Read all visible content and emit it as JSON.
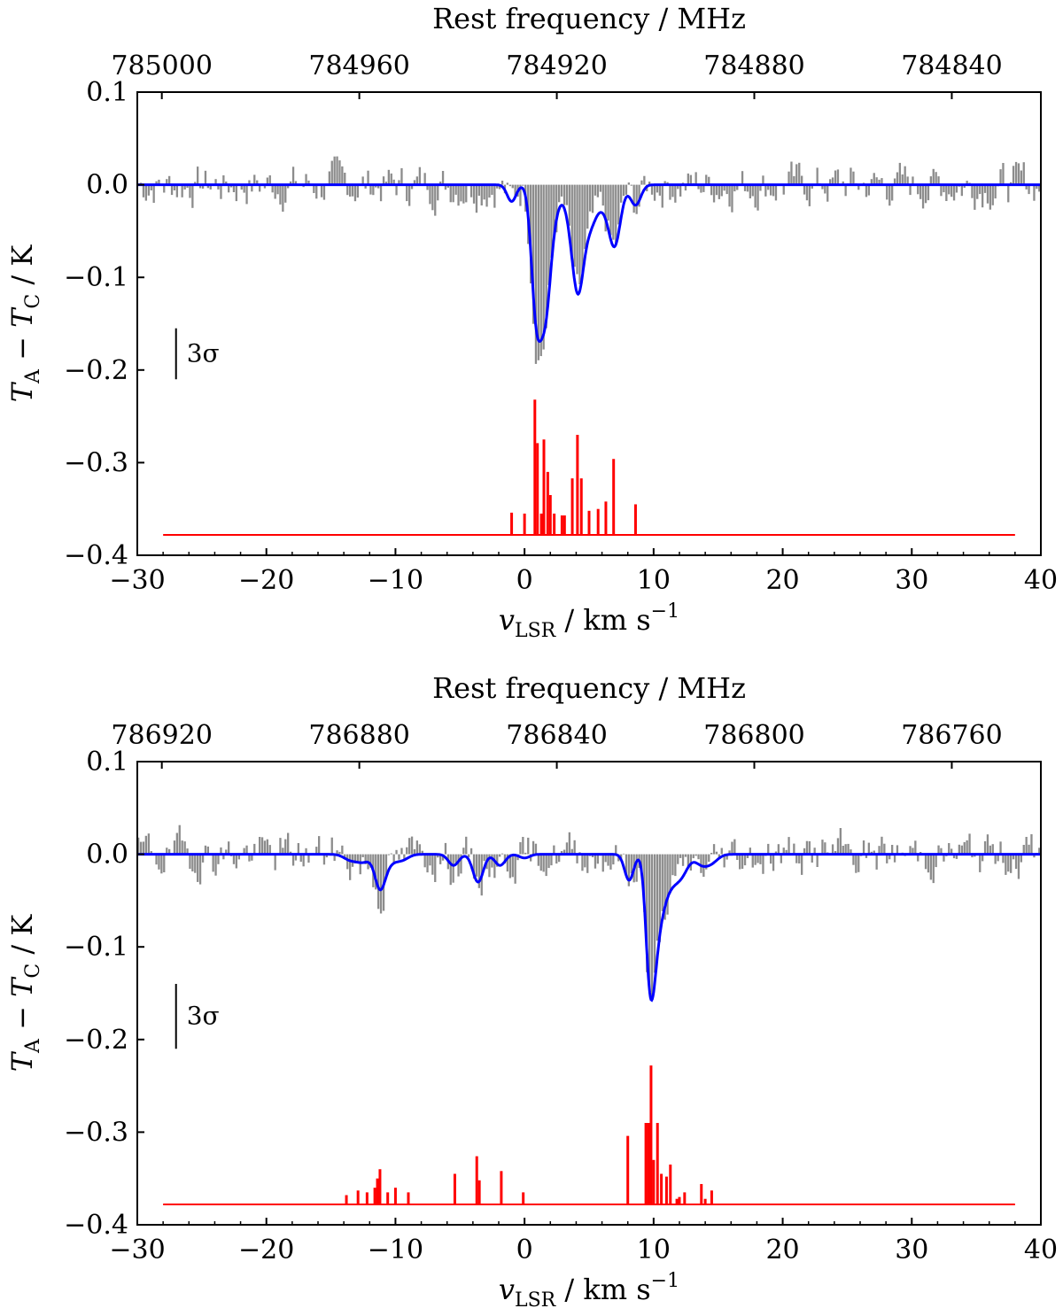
{
  "chart_data": [
    {
      "type": "line",
      "panel": "top",
      "xlabel": "v_LSR / km s^-1",
      "ylabel": "T_A − T_C / K",
      "top_xlabel": "Rest frequency / MHz",
      "xlim": [
        -30,
        40
      ],
      "ylim": [
        -0.4,
        0.1
      ],
      "x_ticks": [
        -30,
        -20,
        -10,
        0,
        10,
        20,
        30,
        40
      ],
      "x_tick_labels": [
        "−30",
        "−20",
        "−10",
        "0",
        "10",
        "20",
        "30",
        "40"
      ],
      "y_ticks": [
        0.1,
        0.0,
        -0.1,
        -0.2,
        -0.3,
        -0.4
      ],
      "y_tick_labels": [
        "0.1",
        "0.0",
        "−0.1",
        "−0.2",
        "−0.3",
        "−0.4"
      ],
      "top_ticks_v": [
        -28.1,
        -12.8,
        2.5,
        17.8,
        33.1
      ],
      "top_tick_labels": [
        "785000",
        "784960",
        "784920",
        "784880",
        "784840"
      ],
      "sigma_label": "3σ",
      "sigma_bar": [
        -0.155,
        -0.21
      ],
      "colors": {
        "observed": "#8c8c8c",
        "model": "#0000ff",
        "components": "#ff0000"
      },
      "model_components": [
        {
          "v": -1.0,
          "depth": 0.018,
          "width": 0.35
        },
        {
          "v": 0.9,
          "depth": 0.13,
          "width": 0.38
        },
        {
          "v": 1.6,
          "depth": 0.115,
          "width": 0.4
        },
        {
          "v": 2.2,
          "depth": 0.03,
          "width": 0.5
        },
        {
          "v": 3.8,
          "depth": 0.05,
          "width": 0.5
        },
        {
          "v": 4.2,
          "depth": 0.07,
          "width": 0.4
        },
        {
          "v": 5.0,
          "depth": 0.04,
          "width": 0.5
        },
        {
          "v": 6.1,
          "depth": 0.02,
          "width": 0.6
        },
        {
          "v": 7.0,
          "depth": 0.06,
          "width": 0.45
        },
        {
          "v": 8.6,
          "depth": 0.022,
          "width": 0.4
        }
      ],
      "components_baseline": -0.378,
      "components_xrange": [
        -28,
        38
      ],
      "stick_lines": [
        {
          "v": -1.0,
          "y": -0.354
        },
        {
          "v": 0.0,
          "y": -0.355
        },
        {
          "v": 0.8,
          "y": -0.232
        },
        {
          "v": 1.0,
          "y": -0.279
        },
        {
          "v": 1.3,
          "y": -0.355
        },
        {
          "v": 1.5,
          "y": -0.275
        },
        {
          "v": 1.8,
          "y": -0.31
        },
        {
          "v": 2.0,
          "y": -0.335
        },
        {
          "v": 2.3,
          "y": -0.355
        },
        {
          "v": 2.9,
          "y": -0.357
        },
        {
          "v": 3.1,
          "y": -0.357
        },
        {
          "v": 3.7,
          "y": -0.317
        },
        {
          "v": 4.1,
          "y": -0.27
        },
        {
          "v": 4.4,
          "y": -0.317
        },
        {
          "v": 5.0,
          "y": -0.352
        },
        {
          "v": 5.7,
          "y": -0.35
        },
        {
          "v": 6.3,
          "y": -0.342
        },
        {
          "v": 6.9,
          "y": -0.296
        },
        {
          "v": 8.6,
          "y": -0.345
        }
      ],
      "noise_seed": 7
    },
    {
      "type": "line",
      "panel": "bottom",
      "xlabel": "v_LSR / km s^-1",
      "ylabel": "T_A − T_C / K",
      "top_xlabel": "Rest frequency / MHz",
      "xlim": [
        -30,
        40
      ],
      "ylim": [
        -0.4,
        0.1
      ],
      "x_ticks": [
        -30,
        -20,
        -10,
        0,
        10,
        20,
        30,
        40
      ],
      "x_tick_labels": [
        "−30",
        "−20",
        "−10",
        "0",
        "10",
        "20",
        "30",
        "40"
      ],
      "y_ticks": [
        0.1,
        0.0,
        -0.1,
        -0.2,
        -0.3,
        -0.4
      ],
      "y_tick_labels": [
        "0.1",
        "0.0",
        "−0.1",
        "−0.2",
        "−0.3",
        "−0.4"
      ],
      "top_ticks_v": [
        -28.1,
        -12.8,
        2.5,
        17.8,
        33.1
      ],
      "top_tick_labels": [
        "786920",
        "786880",
        "786840",
        "786800",
        "786760"
      ],
      "sigma_label": "3σ",
      "sigma_bar": [
        -0.14,
        -0.21
      ],
      "colors": {
        "observed": "#8c8c8c",
        "model": "#0000ff",
        "components": "#ff0000"
      },
      "model_components": [
        {
          "v": -13.5,
          "depth": 0.006,
          "width": 0.5
        },
        {
          "v": -12.5,
          "depth": 0.008,
          "width": 0.5
        },
        {
          "v": -11.2,
          "depth": 0.035,
          "width": 0.4
        },
        {
          "v": -10.5,
          "depth": 0.008,
          "width": 0.5
        },
        {
          "v": -9.5,
          "depth": 0.006,
          "width": 0.5
        },
        {
          "v": -5.5,
          "depth": 0.012,
          "width": 0.4
        },
        {
          "v": -3.6,
          "depth": 0.03,
          "width": 0.4
        },
        {
          "v": -1.9,
          "depth": 0.012,
          "width": 0.4
        },
        {
          "v": 0.0,
          "depth": 0.004,
          "width": 0.4
        },
        {
          "v": 8.1,
          "depth": 0.028,
          "width": 0.35
        },
        {
          "v": 9.6,
          "depth": 0.06,
          "width": 0.3
        },
        {
          "v": 9.9,
          "depth": 0.09,
          "width": 0.35
        },
        {
          "v": 10.4,
          "depth": 0.05,
          "width": 0.45
        },
        {
          "v": 11.2,
          "depth": 0.03,
          "width": 0.6
        },
        {
          "v": 12.2,
          "depth": 0.018,
          "width": 0.5
        },
        {
          "v": 13.7,
          "depth": 0.01,
          "width": 0.5
        },
        {
          "v": 14.5,
          "depth": 0.008,
          "width": 0.5
        }
      ],
      "components_baseline": -0.378,
      "components_xrange": [
        -28,
        38
      ],
      "stick_lines": [
        {
          "v": -13.8,
          "y": -0.368
        },
        {
          "v": -12.9,
          "y": -0.363
        },
        {
          "v": -12.2,
          "y": -0.365
        },
        {
          "v": -11.6,
          "y": -0.36
        },
        {
          "v": -11.4,
          "y": -0.35
        },
        {
          "v": -11.2,
          "y": -0.34
        },
        {
          "v": -10.6,
          "y": -0.365
        },
        {
          "v": -10.0,
          "y": -0.36
        },
        {
          "v": -9.0,
          "y": -0.365
        },
        {
          "v": -5.4,
          "y": -0.345
        },
        {
          "v": -3.7,
          "y": -0.326
        },
        {
          "v": -3.5,
          "y": -0.352
        },
        {
          "v": -1.8,
          "y": -0.342
        },
        {
          "v": -0.1,
          "y": -0.365
        },
        {
          "v": 8.0,
          "y": -0.304
        },
        {
          "v": 9.4,
          "y": -0.29
        },
        {
          "v": 9.6,
          "y": -0.29
        },
        {
          "v": 9.8,
          "y": -0.228
        },
        {
          "v": 10.0,
          "y": -0.33
        },
        {
          "v": 10.3,
          "y": -0.29
        },
        {
          "v": 10.6,
          "y": -0.345
        },
        {
          "v": 11.0,
          "y": -0.348
        },
        {
          "v": 11.3,
          "y": -0.335
        },
        {
          "v": 11.8,
          "y": -0.372
        },
        {
          "v": 12.0,
          "y": -0.37
        },
        {
          "v": 12.4,
          "y": -0.365
        },
        {
          "v": 13.7,
          "y": -0.356
        },
        {
          "v": 14.0,
          "y": -0.372
        },
        {
          "v": 14.5,
          "y": -0.363
        }
      ],
      "noise_seed": 19
    }
  ]
}
